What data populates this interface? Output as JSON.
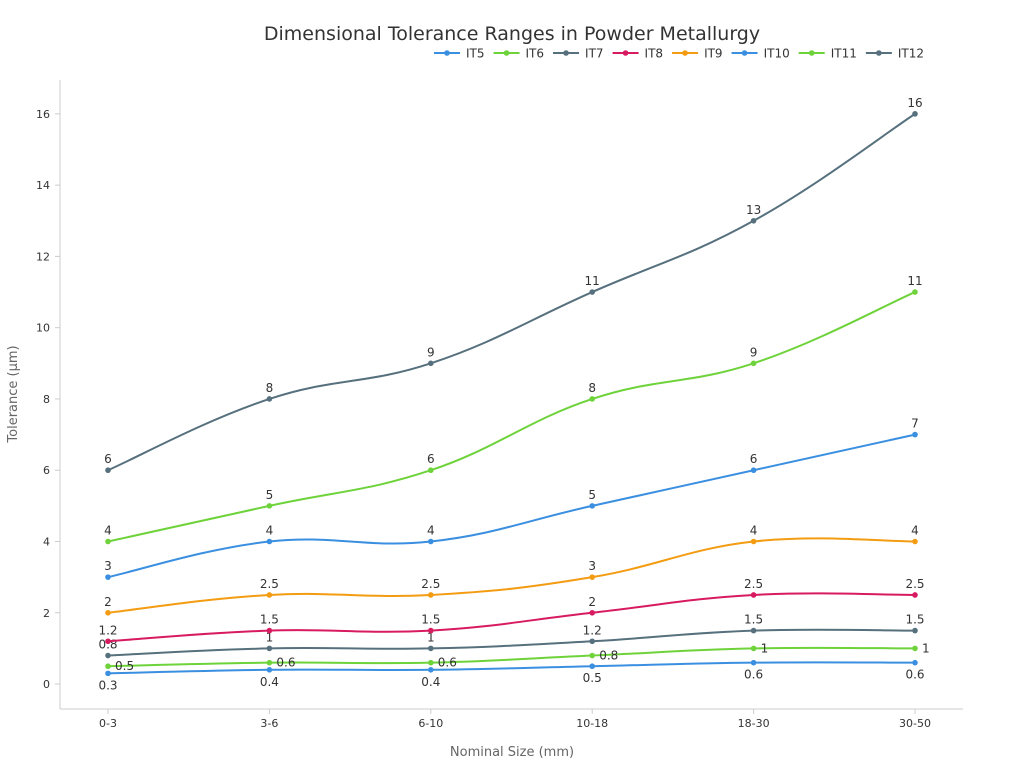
{
  "chart_data": {
    "type": "line",
    "title": "Dimensional Tolerance Ranges in Powder Metallurgy",
    "xlabel": "Nominal Size (mm)",
    "ylabel": "Tolerance (µm)",
    "categories": [
      "0-3",
      "3-6",
      "6-10",
      "10-18",
      "18-30",
      "30-50"
    ],
    "ylim": [
      -0.7,
      16.95
    ],
    "yticks": [
      0,
      2,
      4,
      6,
      8,
      10,
      12,
      14,
      16
    ],
    "grid": false,
    "legend_position": "top-right",
    "smooth": true,
    "data_labels": true,
    "series": [
      {
        "name": "IT5",
        "color": "#3b8fe0",
        "values": [
          0.3,
          0.4,
          0.4,
          0.5,
          0.6,
          0.6
        ]
      },
      {
        "name": "IT6",
        "color": "#6ed33a",
        "values": [
          0.5,
          0.6,
          0.6,
          0.8,
          1,
          1
        ]
      },
      {
        "name": "IT7",
        "color": "#56707d",
        "values": [
          0.8,
          1,
          1,
          1.2,
          1.5,
          1.5
        ]
      },
      {
        "name": "IT8",
        "color": "#d81b60",
        "values": [
          1.2,
          1.5,
          1.5,
          2,
          2.5,
          2.5
        ]
      },
      {
        "name": "IT9",
        "color": "#f39c12",
        "values": [
          2,
          2.5,
          2.5,
          3,
          4,
          4
        ]
      },
      {
        "name": "IT10",
        "color": "#3b8fe0",
        "values": [
          3,
          4,
          4,
          5,
          6,
          7
        ]
      },
      {
        "name": "IT11",
        "color": "#6ed33a",
        "values": [
          4,
          5,
          6,
          8,
          9,
          11
        ]
      },
      {
        "name": "IT12",
        "color": "#56707d",
        "values": [
          6,
          8,
          9,
          11,
          13,
          16
        ]
      }
    ]
  }
}
